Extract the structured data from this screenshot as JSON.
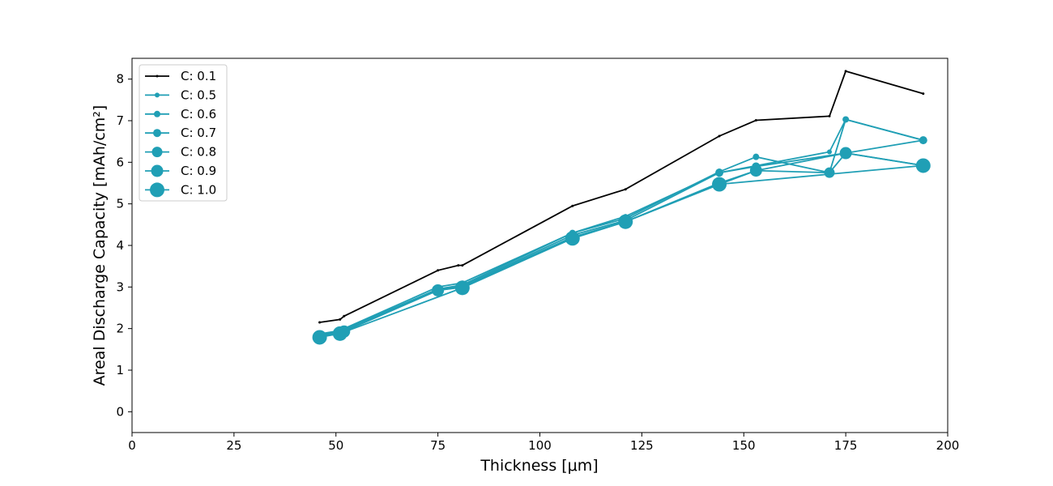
{
  "chart_data": {
    "type": "line",
    "xlabel": "Thickness [μm]",
    "ylabel": "Areal Discharge Capacity [mAh/cm²]",
    "xlim": [
      0,
      200
    ],
    "ylim": [
      -0.5,
      8.5
    ],
    "xticks": [
      0,
      25,
      50,
      75,
      100,
      125,
      150,
      175,
      200
    ],
    "yticks": [
      0,
      1,
      2,
      3,
      4,
      5,
      6,
      7,
      8
    ],
    "grid": false,
    "legend_position": "top-left",
    "colors": {
      "c01": "#000000",
      "others": "#209fb5"
    },
    "series": [
      {
        "name": "C: 0.1",
        "x": [
          46,
          51,
          52,
          75,
          80,
          81,
          108,
          121,
          144,
          153,
          171,
          175,
          194
        ],
        "y": [
          2.15,
          2.22,
          2.3,
          3.4,
          3.52,
          3.52,
          4.95,
          5.35,
          6.63,
          7.01,
          7.11,
          8.19,
          7.65
        ]
      },
      {
        "name": "C: 0.5",
        "x": [
          46,
          51,
          52,
          75,
          81,
          108,
          121,
          144,
          171,
          175,
          194
        ],
        "y": [
          1.87,
          1.95,
          2.0,
          3.0,
          3.1,
          4.3,
          4.7,
          5.75,
          6.25,
          7.03,
          6.53
        ]
      },
      {
        "name": "C: 0.6",
        "x": [
          46,
          51,
          52,
          75,
          81,
          108,
          121,
          144,
          153,
          171,
          175,
          194
        ],
        "y": [
          1.85,
          1.93,
          1.98,
          2.95,
          3.05,
          4.3,
          4.65,
          5.77,
          6.13,
          5.75,
          7.03,
          6.53
        ]
      },
      {
        "name": "C: 0.7",
        "x": [
          46,
          51,
          52,
          75,
          81,
          108,
          121,
          144,
          153,
          175,
          194
        ],
        "y": [
          1.83,
          1.92,
          1.96,
          2.93,
          3.02,
          4.25,
          4.6,
          5.75,
          5.9,
          6.22,
          6.53
        ]
      },
      {
        "name": "C: 0.8",
        "x": [
          46,
          51,
          52,
          75,
          81,
          108,
          121,
          144,
          153,
          171,
          175,
          194
        ],
        "y": [
          1.8,
          1.9,
          1.94,
          2.92,
          3.0,
          4.2,
          4.57,
          5.5,
          5.8,
          5.75,
          6.22,
          5.92
        ]
      },
      {
        "name": "C: 0.9",
        "x": [
          46,
          51,
          52,
          75,
          81,
          108,
          121,
          144,
          153,
          175,
          194
        ],
        "y": [
          1.8,
          1.88,
          1.93,
          2.92,
          2.99,
          4.17,
          4.57,
          5.47,
          5.8,
          6.22,
          5.92
        ]
      },
      {
        "name": "C: 1.0",
        "x": [
          46,
          51,
          81,
          108,
          121,
          144,
          194
        ],
        "y": [
          1.79,
          1.88,
          2.98,
          4.17,
          4.57,
          5.47,
          5.92
        ]
      }
    ]
  }
}
